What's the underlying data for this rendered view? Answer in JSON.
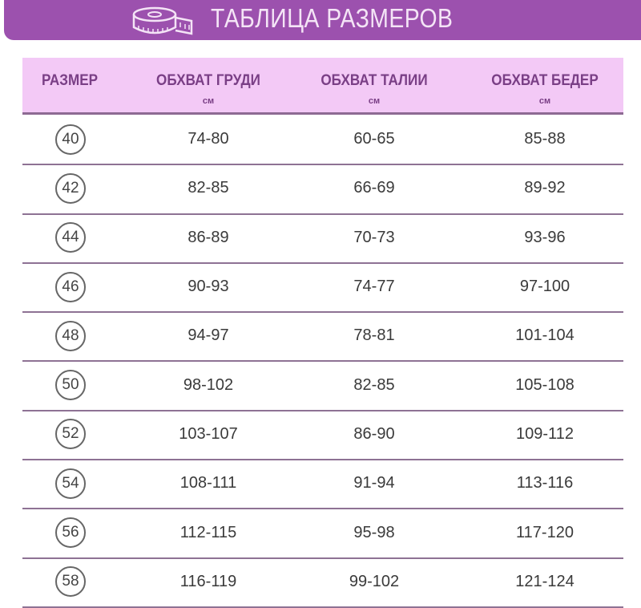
{
  "banner": {
    "title": "ТАБЛИЦА РАЗМЕРОВ",
    "icon": "measuring-tape-icon"
  },
  "colors": {
    "banner": "#9c51ae",
    "header_bg": "#f3c9f6",
    "header_text": "#7a3f86"
  },
  "table": {
    "headers": [
      {
        "label": "РАЗМЕР",
        "unit": ""
      },
      {
        "label": "ОБХВАТ ГРУДИ",
        "unit": "см"
      },
      {
        "label": "ОБХВАТ ТАЛИИ",
        "unit": "см"
      },
      {
        "label": "ОБХВАТ БЕДЕР",
        "unit": "см"
      }
    ],
    "rows": [
      [
        "40",
        "74-80",
        "60-65",
        "85-88"
      ],
      [
        "42",
        "82-85",
        "66-69",
        "89-92"
      ],
      [
        "44",
        "86-89",
        "70-73",
        "93-96"
      ],
      [
        "46",
        "90-93",
        "74-77",
        "97-100"
      ],
      [
        "48",
        "94-97",
        "78-81",
        "101-104"
      ],
      [
        "50",
        "98-102",
        "82-85",
        "105-108"
      ],
      [
        "52",
        "103-107",
        "86-90",
        "109-112"
      ],
      [
        "54",
        "108-111",
        "91-94",
        "113-116"
      ],
      [
        "56",
        "112-115",
        "95-98",
        "117-120"
      ],
      [
        "58",
        "116-119",
        "99-102",
        "121-124"
      ]
    ]
  }
}
